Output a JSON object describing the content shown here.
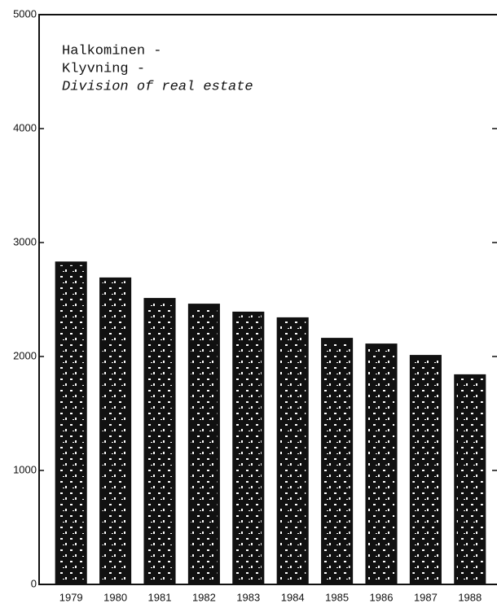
{
  "chart_data": {
    "type": "bar",
    "title": [
      "Halkominen -",
      "Klyvning -",
      "Division of real estate"
    ],
    "categories": [
      "1979",
      "1980",
      "1981",
      "1982",
      "1983",
      "1984",
      "1985",
      "1986",
      "1987",
      "1988"
    ],
    "values": [
      2830,
      2690,
      2510,
      2460,
      2390,
      2340,
      2160,
      2110,
      2010,
      1840
    ],
    "color": "#111111",
    "ylim": [
      0,
      5000
    ],
    "yticks": [
      0,
      1000,
      2000,
      3000,
      4000,
      5000
    ],
    "grid": false
  }
}
